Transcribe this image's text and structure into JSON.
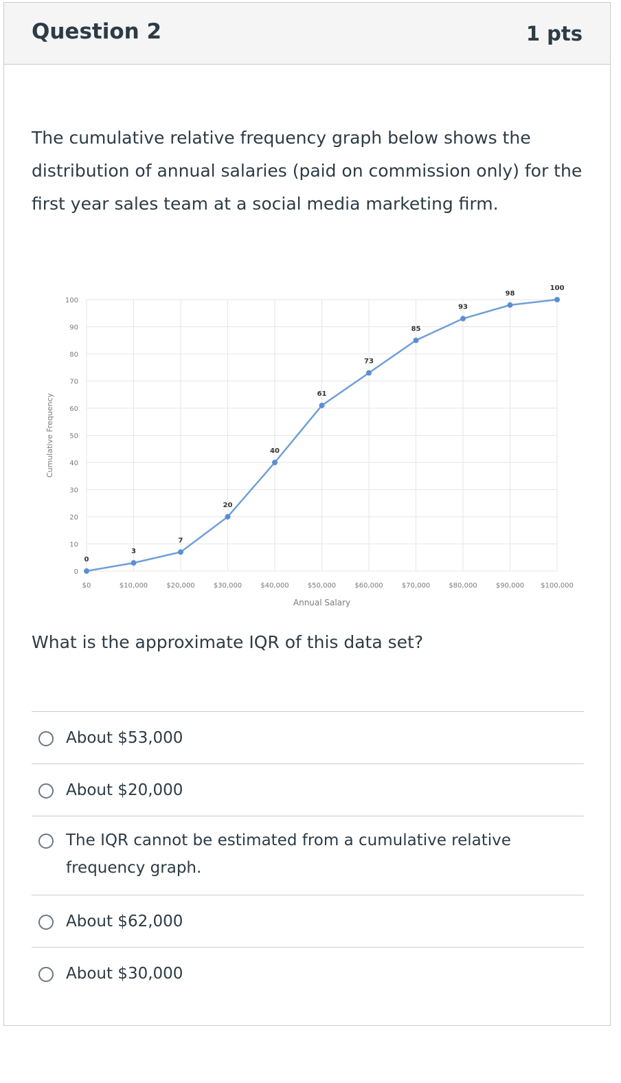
{
  "question": {
    "title": "Question 2",
    "points": "1 pts",
    "text": "The cumulative relative frequency graph below shows the distribution of annual salaries (paid on commission only) for the first year sales team at a social media marketing firm.",
    "prompt": "What is the approximate IQR of this data set?"
  },
  "answers": [
    {
      "label": "About $53,000"
    },
    {
      "label": "About $20,000"
    },
    {
      "label": "The IQR cannot be estimated from a cumulative relative frequency graph."
    },
    {
      "label": "About $62,000"
    },
    {
      "label": "About $30,000"
    }
  ],
  "chart_data": {
    "type": "line",
    "x": [
      0,
      10000,
      20000,
      30000,
      40000,
      50000,
      60000,
      70000,
      80000,
      90000,
      100000
    ],
    "values": [
      0,
      3,
      7,
      20,
      40,
      61,
      73,
      85,
      93,
      98,
      100
    ],
    "x_tick_labels": [
      "$0",
      "$10,000",
      "$20,000",
      "$30,000",
      "$40,000",
      "$50,000",
      "$60,000",
      "$70,000",
      "$80,000",
      "$90,000",
      "$100,000"
    ],
    "y_ticks": [
      0,
      10,
      20,
      30,
      40,
      50,
      60,
      70,
      80,
      90,
      100
    ],
    "xlabel": "Annual Salary",
    "ylabel": "Cumulative Frequency",
    "xlim": [
      0,
      100000
    ],
    "ylim": [
      0,
      100
    ],
    "grid": true,
    "line_color": "#6f9fd8",
    "marker_color": "#5b8fd0"
  }
}
